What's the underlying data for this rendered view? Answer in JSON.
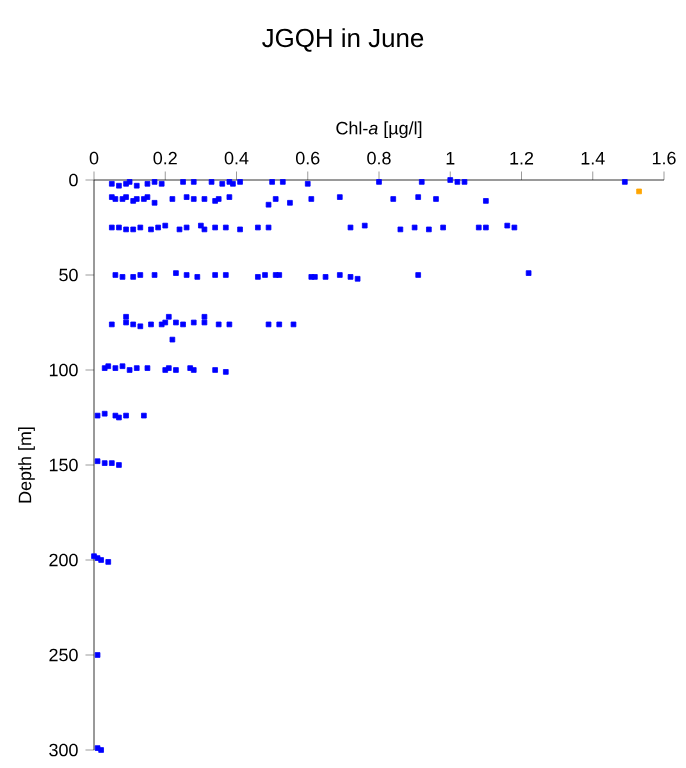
{
  "chart_data": {
    "type": "scatter",
    "title": "JGQH in June",
    "xlabel": "Chl-*a* [µg/l]",
    "ylabel": "Depth [m]",
    "xlim": [
      0,
      1.6
    ],
    "ylim": [
      300,
      0
    ],
    "xticks": [
      0,
      0.2,
      0.4,
      0.6,
      0.8,
      1,
      1.2,
      1.4,
      1.6
    ],
    "yticks": [
      0,
      50,
      100,
      150,
      200,
      250,
      300
    ],
    "grid": false,
    "marker": "square",
    "series": [
      {
        "color": "#0000ff",
        "x": [
          0.05,
          0.07,
          0.09,
          0.1,
          0.12,
          0.15,
          0.17,
          0.19,
          0.25,
          0.28,
          0.33,
          0.36,
          0.38,
          0.39,
          0.41,
          0.5,
          0.53,
          0.6,
          0.8,
          0.92,
          1.0,
          1.02,
          1.04,
          1.49,
          0.05,
          0.06,
          0.08,
          0.09,
          0.11,
          0.12,
          0.14,
          0.15,
          0.17,
          0.22,
          0.26,
          0.28,
          0.31,
          0.34,
          0.35,
          0.38,
          0.49,
          0.51,
          0.55,
          0.61,
          0.69,
          0.84,
          0.91,
          0.96,
          1.1,
          0.05,
          0.07,
          0.09,
          0.11,
          0.13,
          0.16,
          0.18,
          0.2,
          0.24,
          0.26,
          0.3,
          0.31,
          0.34,
          0.37,
          0.41,
          0.46,
          0.49,
          0.72,
          0.76,
          0.86,
          0.9,
          0.94,
          0.98,
          1.08,
          1.1,
          1.16,
          1.18,
          0.06,
          0.08,
          0.11,
          0.13,
          0.17,
          0.23,
          0.26,
          0.29,
          0.34,
          0.37,
          0.46,
          0.48,
          0.51,
          0.52,
          0.61,
          0.62,
          0.65,
          0.69,
          0.72,
          0.74,
          0.91,
          1.22,
          0.09,
          0.21,
          0.31,
          0.05,
          0.09,
          0.11,
          0.13,
          0.16,
          0.19,
          0.2,
          0.23,
          0.25,
          0.28,
          0.31,
          0.35,
          0.38,
          0.49,
          0.52,
          0.56,
          0.22,
          0.03,
          0.04,
          0.06,
          0.08,
          0.1,
          0.12,
          0.15,
          0.2,
          0.21,
          0.23,
          0.27,
          0.28,
          0.34,
          0.37,
          0.01,
          0.03,
          0.06,
          0.07,
          0.09,
          0.14,
          0.01,
          0.03,
          0.05,
          0.07,
          0.0,
          0.01,
          0.02,
          0.04,
          0.01,
          0.01,
          0.02
        ],
        "values": [
          2,
          3,
          2,
          1,
          3,
          2,
          1,
          2,
          1,
          1,
          1,
          2,
          1,
          2,
          1,
          1,
          1,
          2,
          1,
          1,
          0,
          1,
          1,
          1,
          9,
          10,
          10,
          9,
          11,
          10,
          10,
          9,
          12,
          10,
          9,
          10,
          10,
          11,
          10,
          9,
          13,
          10,
          12,
          10,
          9,
          10,
          9,
          10,
          11,
          25,
          25,
          26,
          26,
          25,
          26,
          25,
          24,
          26,
          25,
          24,
          26,
          25,
          25,
          26,
          25,
          25,
          25,
          24,
          26,
          25,
          26,
          25,
          25,
          25,
          24,
          25,
          50,
          51,
          51,
          50,
          50,
          49,
          50,
          51,
          50,
          50,
          51,
          50,
          50,
          50,
          51,
          51,
          51,
          50,
          51,
          52,
          50,
          49,
          72,
          72,
          72,
          76,
          75,
          76,
          77,
          76,
          76,
          75,
          75,
          76,
          75,
          75,
          76,
          76,
          76,
          76,
          76,
          84,
          99,
          98,
          99,
          98,
          100,
          99,
          99,
          100,
          99,
          100,
          99,
          100,
          100,
          101,
          124,
          123,
          124,
          125,
          124,
          124,
          148,
          149,
          149,
          150,
          198,
          199,
          200,
          201,
          250,
          299,
          300
        ]
      },
      {
        "color": "#ffa500",
        "x": [
          1.53
        ],
        "values": [
          6
        ]
      }
    ]
  }
}
